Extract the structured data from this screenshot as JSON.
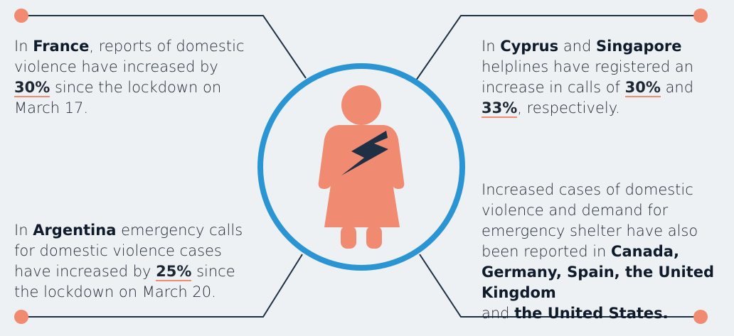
{
  "colors": {
    "background": "#eef1f4",
    "accent": "#f08a70",
    "ring": "#2b95d3",
    "line": "#1f3045",
    "figure": "#f08a70",
    "bolt": "#1f3045"
  },
  "icons": [
    "woman-figure-icon",
    "lightning-bolt-icon"
  ],
  "top_left": {
    "t1": "In ",
    "country": "France",
    "t2": ", reports of domestic violence have increased by ",
    "pct": "30%",
    "t3": " since the lockdown on March 17."
  },
  "top_right": {
    "t1": "In ",
    "country1": "Cyprus",
    "t2": " and ",
    "country2": "Singapore",
    "t3": " helplines have registered an increase in calls of ",
    "pct1": "30%",
    "t4": " and ",
    "pct2": "33%",
    "t5": ", respectively."
  },
  "bottom_left": {
    "t1": "In ",
    "country": "Argentina",
    "t2": " emergency calls for domestic violence cases have increased by ",
    "pct": "25%",
    "t3": " since the lockdown on March 20."
  },
  "bottom_right": {
    "t1": "Increased cases of domestic violence and demand for emergency shelter have also been reported in ",
    "countries1": "Canada, Germany, Spain, the United Kingdom",
    "t2": " and ",
    "countries2": "the United States."
  }
}
